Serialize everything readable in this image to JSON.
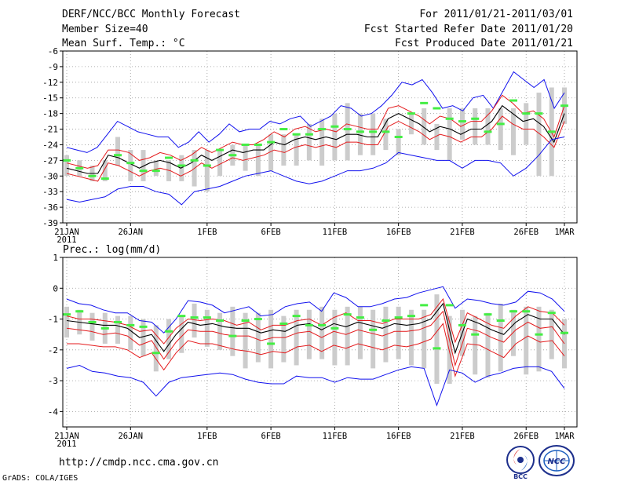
{
  "header": {
    "line1_left": "DERF/NCC/BCC Monthly Forecast",
    "line2_left": "Member Size=40",
    "line3_left": "Mean Surf. Temp.: °C",
    "line1_right": "For 2011/01/21-2011/03/01",
    "line2_right": "Fcst Started Refer Date 2011/01/20",
    "line3_right": "Fcst Produced Date 2011/01/21"
  },
  "footer": {
    "url": "http://cmdp.ncc.cma.gov.cn",
    "grads_credit": "GrADS: COLA/IGES",
    "logo1_text": "BCC",
    "logo2_text": "NCC"
  },
  "colors": {
    "ensemble_mean": "#000000",
    "std_band": "#e41a1c",
    "min_max": "#1010ee",
    "member_box": "#cccccc",
    "observed_marker": "#44ee44"
  },
  "chart_data": [
    {
      "type": "line",
      "title": "Mean Surf. Temp.: °C",
      "ylabel": "°C",
      "ylim": [
        -39,
        -6
      ],
      "yticks": [
        -39,
        -36,
        -33,
        -30,
        -27,
        -24,
        -21,
        -18,
        -15,
        -12,
        -9,
        -6
      ],
      "x_tick_labels": [
        "21JAN",
        "26JAN",
        "1FEB",
        "6FEB",
        "11FEB",
        "16FEB",
        "21FEB",
        "26FEB",
        "1MAR"
      ],
      "x_tick_days": [
        0,
        5,
        11,
        16,
        21,
        26,
        31,
        36,
        39
      ],
      "x_year_label": "2011",
      "days": 40,
      "series": [
        {
          "name": "max",
          "values": [
            -24.5,
            -25,
            -25.5,
            -24.5,
            -22,
            -19.5,
            -20.5,
            -21.5,
            -22,
            -22.5,
            -22.5,
            -24.5,
            -23.5,
            -21.5,
            -23.5,
            -22,
            -20,
            -21.5,
            -21,
            -21,
            -19.5,
            -20,
            -19,
            -18.5,
            -20.5,
            -19.5,
            -18.5,
            -16.5,
            -17,
            -18.5,
            -18,
            -16.5,
            -14.5,
            -12,
            -12.5,
            -11.5,
            -14,
            -17,
            -16.5,
            -17.5,
            -15,
            -14.5,
            -17,
            -13.5,
            -10,
            -11.5,
            -13,
            -11.5,
            -17,
            -14
          ]
        },
        {
          "name": "upper",
          "values": [
            -27.5,
            -28,
            -28.5,
            -28,
            -25,
            -25,
            -25.5,
            -27,
            -26.5,
            -25.5,
            -26,
            -27,
            -26,
            -24.5,
            -25.5,
            -24.5,
            -23.5,
            -24,
            -24,
            -23,
            -21.5,
            -22.5,
            -21,
            -20.5,
            -21.5,
            -21,
            -21.5,
            -20,
            -20.5,
            -21,
            -21,
            -17,
            -16.5,
            -17.5,
            -18.5,
            -20,
            -18.5,
            -19,
            -20.5,
            -19.5,
            -19.5,
            -17.5,
            -14.5,
            -16,
            -18,
            -17.5,
            -19,
            -22.5,
            -16.5
          ]
        },
        {
          "name": "mean",
          "values": [
            -28.5,
            -29,
            -29.5,
            -29.5,
            -26,
            -26.5,
            -27.5,
            -28.5,
            -27.5,
            -27,
            -27.5,
            -28.5,
            -27.5,
            -26,
            -27,
            -26,
            -25,
            -25.5,
            -25,
            -25,
            -23.5,
            -24,
            -23,
            -22.5,
            -23,
            -22.5,
            -23,
            -22,
            -22,
            -22.5,
            -22.5,
            -19,
            -18,
            -19,
            -20,
            -21.5,
            -20.5,
            -21,
            -22,
            -21,
            -21,
            -19.5,
            -16.5,
            -18,
            -19.5,
            -19,
            -20.5,
            -23.5,
            -18
          ]
        },
        {
          "name": "lower",
          "values": [
            -29.5,
            -30,
            -30.5,
            -31,
            -27.5,
            -28,
            -29,
            -30,
            -29,
            -28.5,
            -29,
            -30,
            -29,
            -27.5,
            -28.5,
            -27.5,
            -26.5,
            -27,
            -26.5,
            -26,
            -25,
            -25.5,
            -24.5,
            -24,
            -24.5,
            -24,
            -24.5,
            -23.5,
            -23.5,
            -24,
            -24,
            -20.5,
            -19.5,
            -20.5,
            -21.5,
            -23,
            -22,
            -22.5,
            -23.5,
            -22.5,
            -22.5,
            -21,
            -18.5,
            -20,
            -21,
            -21,
            -22.5,
            -24.5,
            -19.5
          ]
        },
        {
          "name": "min",
          "values": [
            -34.5,
            -35,
            -34.5,
            -34,
            -32.5,
            -32,
            -32,
            -33,
            -33.5,
            -35.5,
            -33,
            -32.5,
            -32,
            -31,
            -30,
            -29.5,
            -29,
            -30,
            -31,
            -31.5,
            -31,
            -30,
            -29,
            -29,
            -28.5,
            -27.5,
            -25.5,
            -26,
            -26.5,
            -27,
            -27,
            -28.5,
            -27,
            -27,
            -27.5,
            -30,
            -28.5,
            -26,
            -23,
            -22.5
          ]
        }
      ],
      "boxes": [
        [
          -30,
          -26
        ],
        [
          -30,
          -27
        ],
        [
          -31,
          -28
        ],
        [
          -31,
          -27
        ],
        [
          -28,
          -22.5
        ],
        [
          -31,
          -25
        ],
        [
          -31,
          -25
        ],
        [
          -30,
          -27
        ],
        [
          -31,
          -27
        ],
        [
          -31,
          -26
        ],
        [
          -32,
          -25
        ],
        [
          -33,
          -25
        ],
        [
          -30,
          -25
        ],
        [
          -28,
          -24
        ],
        [
          -29,
          -24
        ],
        [
          -30,
          -24
        ],
        [
          -29,
          -22
        ],
        [
          -28,
          -22
        ],
        [
          -28,
          -22
        ],
        [
          -27,
          -20
        ],
        [
          -28,
          -19
        ],
        [
          -27,
          -18
        ],
        [
          -27,
          -16
        ],
        [
          -26,
          -18
        ],
        [
          -26,
          -18
        ],
        [
          -25,
          -19
        ],
        [
          -26,
          -21
        ],
        [
          -22,
          -18
        ],
        [
          -24,
          -17
        ],
        [
          -25,
          -20
        ],
        [
          -27,
          -17
        ],
        [
          -23,
          -17
        ],
        [
          -24,
          -17
        ],
        [
          -24,
          -17
        ],
        [
          -25,
          -17
        ],
        [
          -26,
          -17
        ],
        [
          -24,
          -16
        ],
        [
          -30,
          -14
        ],
        [
          -30,
          -13
        ],
        [
          -20,
          -13
        ]
      ],
      "observed": [
        -27,
        -28.5,
        -30,
        -30.5,
        -26,
        -27.5,
        -29,
        -29,
        -26.5,
        -28,
        -27,
        -28,
        -25,
        -26,
        -24,
        -24,
        -23.5,
        -21,
        -22,
        -22,
        -21,
        -20.5,
        -21,
        -21.5,
        -21.5,
        -21.5,
        -22.5,
        -18,
        -16,
        -17,
        -19,
        -19.5,
        -19,
        -21.5,
        -20,
        -15.5,
        -18,
        -18,
        -21.5,
        -16.5
      ]
    },
    {
      "type": "line",
      "title": "Prec.: log(mm/d)",
      "ylabel": "log(mm/d)",
      "ylim": [
        -4.5,
        1
      ],
      "yticks": [
        -4,
        -3,
        -2,
        -1,
        0,
        1
      ],
      "x_tick_labels": [
        "21JAN",
        "26JAN",
        "1FEB",
        "6FEB",
        "11FEB",
        "16FEB",
        "21FEB",
        "26FEB",
        "1MAR"
      ],
      "x_tick_days": [
        0,
        5,
        11,
        16,
        21,
        26,
        31,
        36,
        39
      ],
      "x_year_label": "2011",
      "days": 40,
      "series": [
        {
          "name": "max",
          "values": [
            -0.35,
            -0.5,
            -0.55,
            -0.7,
            -0.8,
            -0.8,
            -1.05,
            -1.1,
            -1.45,
            -1,
            -0.4,
            -0.45,
            -0.55,
            -0.8,
            -0.7,
            -0.6,
            -0.9,
            -0.85,
            -0.6,
            -0.5,
            -0.45,
            -0.75,
            -0.15,
            -0.3,
            -0.6,
            -0.6,
            -0.5,
            -0.35,
            -0.3,
            -0.15,
            -0.05,
            0.05,
            -0.65,
            -0.35,
            -0.4,
            -0.5,
            -0.55,
            -0.45,
            -0.1,
            -0.15,
            -0.35,
            -0.75
          ]
        },
        {
          "name": "upper",
          "values": [
            -0.9,
            -1,
            -1,
            -1.05,
            -1.1,
            -1.2,
            -1.4,
            -1.35,
            -1.8,
            -1.3,
            -1,
            -1.05,
            -1,
            -1.05,
            -1.2,
            -1.1,
            -1.35,
            -1.2,
            -1.2,
            -1.05,
            -1,
            -1.2,
            -0.95,
            -0.8,
            -1.05,
            -1.05,
            -1.15,
            -1,
            -1,
            -1,
            -0.85,
            -0.35,
            -1.75,
            -0.8,
            -1,
            -1.2,
            -1.3,
            -0.9,
            -0.6,
            -0.75,
            -0.8,
            -1.2
          ]
        },
        {
          "name": "mean",
          "values": [
            -1.05,
            -1.1,
            -1.15,
            -1.2,
            -1.2,
            -1.3,
            -1.6,
            -1.5,
            -2.05,
            -1.5,
            -1.1,
            -1.2,
            -1.15,
            -1.25,
            -1.3,
            -1.3,
            -1.45,
            -1.35,
            -1.4,
            -1.2,
            -1.15,
            -1.35,
            -1.15,
            -1.25,
            -1.1,
            -1.2,
            -1.3,
            -1.15,
            -1.2,
            -1.15,
            -1,
            -0.5,
            -2.1,
            -1,
            -1.15,
            -1.35,
            -1.5,
            -1.1,
            -0.85,
            -1,
            -1,
            -1.5
          ]
        },
        {
          "name": "lower",
          "values": [
            -1.3,
            -1.35,
            -1.4,
            -1.5,
            -1.45,
            -1.55,
            -1.85,
            -1.7,
            -2.3,
            -1.75,
            -1.35,
            -1.4,
            -1.4,
            -1.5,
            -1.55,
            -1.55,
            -1.7,
            -1.6,
            -1.6,
            -1.45,
            -1.4,
            -1.6,
            -1.4,
            -1.5,
            -1.35,
            -1.45,
            -1.55,
            -1.4,
            -1.4,
            -1.35,
            -1.2,
            -0.75,
            -2.5,
            -1.3,
            -1.4,
            -1.6,
            -1.75,
            -1.35,
            -1.1,
            -1.3,
            -1.25,
            -1.8
          ]
        },
        {
          "name": "lower2",
          "values": [
            -1.8,
            -1.8,
            -1.85,
            -1.9,
            -1.9,
            -2,
            -2.25,
            -2.1,
            -2.65,
            -2.1,
            -1.7,
            -1.8,
            -1.8,
            -1.9,
            -2,
            -2.05,
            -2.15,
            -2.05,
            -2.1,
            -1.9,
            -1.85,
            -2.05,
            -1.85,
            -1.95,
            -1.8,
            -1.9,
            -2,
            -1.85,
            -1.9,
            -1.8,
            -1.65,
            -1.15,
            -2.85,
            -1.8,
            -1.85,
            -2.05,
            -2.25,
            -1.8,
            -1.55,
            -1.75,
            -1.7,
            -2.2
          ]
        },
        {
          "name": "min",
          "values": [
            -2.6,
            -2.5,
            -2.7,
            -2.75,
            -2.85,
            -2.9,
            -3.05,
            -3.5,
            -3.05,
            -2.9,
            -2.85,
            -2.8,
            -2.75,
            -2.8,
            -2.95,
            -3.05,
            -3.1,
            -3.1,
            -2.85,
            -2.9,
            -2.9,
            -3.05,
            -2.9,
            -2.95,
            -2.95,
            -2.8,
            -2.65,
            -2.55,
            -2.6,
            -3.8,
            -2.65,
            -2.75,
            -3.05,
            -2.85,
            -2.75,
            -2.6,
            -2.55,
            -2.55,
            -2.7,
            -3.25
          ]
        }
      ],
      "boxes": [
        [
          -1.6,
          -0.6
        ],
        [
          -1.5,
          -0.7
        ],
        [
          -1.7,
          -0.8
        ],
        [
          -1.8,
          -0.8
        ],
        [
          -1.8,
          -0.9
        ],
        [
          -2,
          -0.9
        ],
        [
          -2.2,
          -1
        ],
        [
          -2.7,
          -1.2
        ],
        [
          -2.3,
          -1
        ],
        [
          -2.1,
          -0.9
        ],
        [
          -1.6,
          -0.5
        ],
        [
          -1.9,
          -0.7
        ],
        [
          -2,
          -0.8
        ],
        [
          -2.2,
          -0.6
        ],
        [
          -2.6,
          -0.8
        ],
        [
          -2.4,
          -0.8
        ],
        [
          -2.6,
          -0.7
        ],
        [
          -2.4,
          -0.9
        ],
        [
          -2.5,
          -0.7
        ],
        [
          -2.3,
          -0.7
        ],
        [
          -2.3,
          -0.6
        ],
        [
          -2.5,
          -0.7
        ],
        [
          -2.5,
          -0.6
        ],
        [
          -2.3,
          -0.6
        ],
        [
          -2.6,
          -0.7
        ],
        [
          -2.4,
          -0.6
        ],
        [
          -2.3,
          -0.6
        ],
        [
          -2.5,
          -0.7
        ],
        [
          -2.6,
          -0.7
        ],
        [
          -3.1,
          -0.2
        ],
        [
          -3.1,
          -0.9
        ],
        [
          -2.2,
          -0.7
        ],
        [
          -2.8,
          -0.9
        ],
        [
          -2.9,
          -0.8
        ],
        [
          -2.7,
          -0.5
        ],
        [
          -2.2,
          -0.7
        ],
        [
          -2.8,
          -0.6
        ],
        [
          -2.7,
          -0.6
        ],
        [
          -2.3,
          -0.7
        ],
        [
          -2.6,
          -1
        ]
      ],
      "observed": [
        -0.85,
        -0.75,
        -1.1,
        -1.3,
        -1.1,
        -1.2,
        -1.25,
        -2.1,
        -1.4,
        -0.9,
        -0.95,
        -0.95,
        -1.05,
        -1.55,
        -1.05,
        -1,
        -1.8,
        -1.15,
        -0.9,
        -1.2,
        -1.2,
        -1.3,
        -0.85,
        -0.95,
        -1.35,
        -1.05,
        -0.95,
        -0.9,
        -0.55,
        -1.95,
        -0.55,
        -1.2,
        -1.5,
        -0.85,
        -1.05,
        -0.75,
        -0.75,
        -1.5,
        -0.8,
        -1.45
      ]
    }
  ]
}
